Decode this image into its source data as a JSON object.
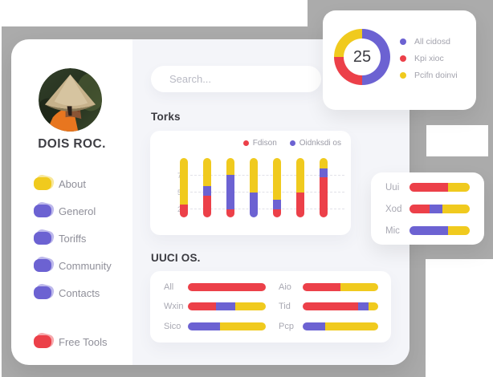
{
  "colors": {
    "red": "#ec4049",
    "purple": "#6c62d2",
    "yellow": "#f0ca1e",
    "gray_bg": "#ababab",
    "content_bg": "#f4f5f9"
  },
  "sidebar": {
    "profile_name": "DOIS ROC.",
    "items": [
      {
        "label": "About",
        "color": "yellow"
      },
      {
        "label": "Generol",
        "color": "purple"
      },
      {
        "label": "Toriffs",
        "color": "purple"
      },
      {
        "label": "Community",
        "color": "purple"
      },
      {
        "label": "Contacts",
        "color": "purple"
      }
    ],
    "free_tools": {
      "label": "Free Tools",
      "color": "red"
    }
  },
  "search": {
    "placeholder": "Search..."
  },
  "sections": {
    "torks_title": "Torks",
    "uuci_title": "UUCI OS."
  },
  "chart_data": [
    {
      "id": "donut",
      "type": "pie",
      "center_label": "25",
      "legend_position": "right",
      "series": [
        {
          "name": "All cidosd",
          "color": "purple",
          "value": 50
        },
        {
          "name": "Kpi xioc",
          "color": "red",
          "value": 25
        },
        {
          "name": "Pcifn doinvi",
          "color": "yellow",
          "value": 25
        }
      ]
    },
    {
      "id": "torks",
      "type": "bar",
      "stacked": true,
      "title": "Torks",
      "ylim": [
        0,
        100
      ],
      "y_ticks": [
        "75",
        "50",
        "25"
      ],
      "grid": "dashed-horizontal",
      "legend_position": "top-right",
      "series_legend": [
        {
          "name": "Fdison",
          "color": "red"
        },
        {
          "name": "Oidnksdi os",
          "color": "purple"
        }
      ],
      "bars": [
        {
          "segments": [
            {
              "color": "red",
              "pct": 22
            },
            {
              "color": "yellow",
              "pct": 78
            }
          ]
        },
        {
          "segments": [
            {
              "color": "red",
              "pct": 37
            },
            {
              "color": "purple",
              "pct": 16
            },
            {
              "color": "yellow",
              "pct": 47
            }
          ]
        },
        {
          "segments": [
            {
              "color": "red",
              "pct": 14
            },
            {
              "color": "purple",
              "pct": 58
            },
            {
              "color": "yellow",
              "pct": 28
            }
          ]
        },
        {
          "segments": [
            {
              "color": "purple",
              "pct": 42
            },
            {
              "color": "yellow",
              "pct": 58
            }
          ]
        },
        {
          "segments": [
            {
              "color": "red",
              "pct": 14
            },
            {
              "color": "purple",
              "pct": 16
            },
            {
              "color": "yellow",
              "pct": 70
            }
          ]
        },
        {
          "segments": [
            {
              "color": "red",
              "pct": 42
            },
            {
              "color": "yellow",
              "pct": 58
            }
          ]
        },
        {
          "segments": [
            {
              "color": "red",
              "pct": 68
            },
            {
              "color": "purple",
              "pct": 15
            },
            {
              "color": "yellow",
              "pct": 17
            }
          ]
        }
      ]
    },
    {
      "id": "uuci",
      "type": "bar",
      "orientation": "horizontal",
      "stacked": true,
      "title": "UUCI OS.",
      "rows": [
        {
          "label": "All",
          "segments": [
            {
              "color": "red",
              "pct": 100
            }
          ]
        },
        {
          "label": "Wxin",
          "segments": [
            {
              "color": "red",
              "pct": 36
            },
            {
              "color": "purple",
              "pct": 25
            },
            {
              "color": "yellow",
              "pct": 39
            }
          ]
        },
        {
          "label": "Sico",
          "segments": [
            {
              "color": "purple",
              "pct": 41
            },
            {
              "color": "yellow",
              "pct": 59
            }
          ]
        },
        {
          "label": "Aio",
          "segments": [
            {
              "color": "red",
              "pct": 50
            },
            {
              "color": "yellow",
              "pct": 50
            }
          ]
        },
        {
          "label": "Tid",
          "segments": [
            {
              "color": "red",
              "pct": 73
            },
            {
              "color": "purple",
              "pct": 14
            },
            {
              "color": "yellow",
              "pct": 13
            }
          ]
        },
        {
          "label": "Pcp",
          "segments": [
            {
              "color": "purple",
              "pct": 30
            },
            {
              "color": "yellow",
              "pct": 70
            }
          ]
        }
      ]
    },
    {
      "id": "side",
      "type": "bar",
      "orientation": "horizontal",
      "stacked": true,
      "rows": [
        {
          "label": "Uui",
          "segments": [
            {
              "color": "red",
              "pct": 64
            },
            {
              "color": "yellow",
              "pct": 36
            }
          ]
        },
        {
          "label": "Xod",
          "segments": [
            {
              "color": "red",
              "pct": 33
            },
            {
              "color": "purple",
              "pct": 22
            },
            {
              "color": "yellow",
              "pct": 45
            }
          ]
        },
        {
          "label": "Mic",
          "segments": [
            {
              "color": "purple",
              "pct": 64
            },
            {
              "color": "yellow",
              "pct": 36
            }
          ]
        }
      ]
    }
  ]
}
